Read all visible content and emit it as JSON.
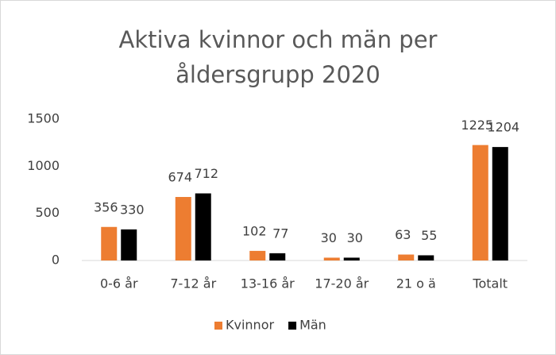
{
  "chart_data": {
    "type": "bar",
    "title": "Aktiva kvinnor och män per åldersgrupp 2020",
    "categories": [
      "0-6 år",
      "7-12 år",
      "13-16 år",
      "17-20 år",
      "21 o ä",
      "Totalt"
    ],
    "series": [
      {
        "name": "Kvinnor",
        "color": "#ed7d31",
        "values": [
          356,
          674,
          102,
          30,
          63,
          1225
        ]
      },
      {
        "name": "Män",
        "color": "#000000",
        "values": [
          330,
          712,
          77,
          30,
          55,
          1204
        ]
      }
    ],
    "ylim": [
      0,
      1500
    ],
    "yticks": [
      0,
      500,
      1000,
      1500
    ],
    "grid": false,
    "legend": "bottom"
  }
}
